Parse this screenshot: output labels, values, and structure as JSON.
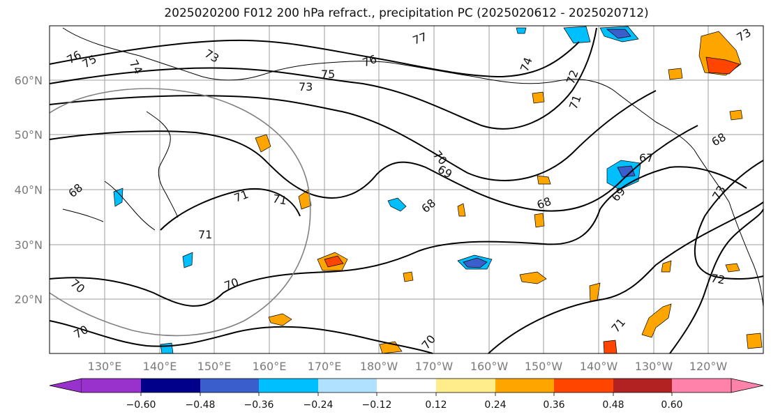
{
  "title": "2025020200 F012 200 hPa refract., precipitation PC (2025020612 - 2025020712)",
  "map": {
    "lon_range": [
      122,
      252
    ],
    "lat_range": [
      10,
      70
    ],
    "lat_labels": [
      "60°N",
      "50°N",
      "40°N",
      "30°N",
      "20°N"
    ],
    "lon_labels": [
      "130°E",
      "140°E",
      "150°E",
      "160°E",
      "170°E",
      "180°W",
      "170°W",
      "160°W",
      "150°W",
      "140°W",
      "130°W",
      "120°W"
    ],
    "contour_labels": [
      "76",
      "75",
      "74",
      "73",
      "75",
      "73",
      "76",
      "77",
      "74",
      "72",
      "71",
      "71",
      "71",
      "71",
      "70",
      "69",
      "68",
      "68",
      "68",
      "67",
      "68",
      "69",
      "73",
      "73",
      "70",
      "70",
      "70",
      "70",
      "71",
      "72"
    ],
    "contour_color": "#000000",
    "grid_color": "#9e9e9e",
    "circle_color": "#808080"
  },
  "colorbar": {
    "tick_labels": [
      "−0.60",
      "−0.48",
      "−0.36",
      "−0.24",
      "−0.12",
      "0.12",
      "0.24",
      "0.36",
      "0.48",
      "0.60"
    ],
    "colors": [
      "#9932cc",
      "#00008b",
      "#3a5fcd",
      "#00bfff",
      "#b0e2ff",
      "#ffffff",
      "#ffec8b",
      "#ffa500",
      "#ff4500",
      "#b22222",
      "#ff82ab"
    ]
  }
}
